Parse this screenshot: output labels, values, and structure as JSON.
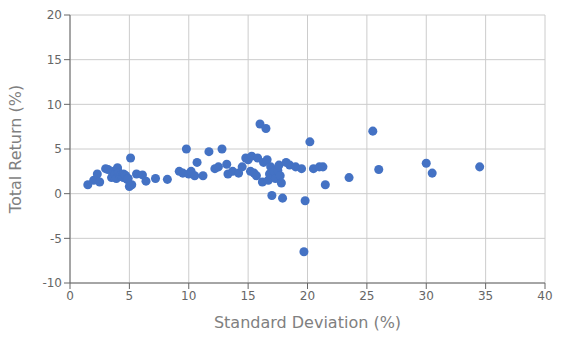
{
  "chart_data": {
    "type": "scatter",
    "xlabel": "Standard Deviation (%)",
    "ylabel": "Total Return (%)",
    "x": [
      1.5,
      2.0,
      2.3,
      2.5,
      3.0,
      3.2,
      3.5,
      3.6,
      3.7,
      3.8,
      3.9,
      4.0,
      4.0,
      4.1,
      4.2,
      4.3,
      4.4,
      4.5,
      4.5,
      4.5,
      4.6,
      4.7,
      4.8,
      4.9,
      5.0,
      5.1,
      5.2,
      5.6,
      6.1,
      6.4,
      7.2,
      8.2,
      9.2,
      9.5,
      9.8,
      10.0,
      10.2,
      10.5,
      10.7,
      11.2,
      11.7,
      12.2,
      12.5,
      12.8,
      13.2,
      13.3,
      13.7,
      14.2,
      14.5,
      14.8,
      15.0,
      15.2,
      15.3,
      15.5,
      15.7,
      15.8,
      16.0,
      16.2,
      16.3,
      16.5,
      16.6,
      16.7,
      16.8,
      16.9,
      17.0,
      17.2,
      17.3,
      17.5,
      17.6,
      17.7,
      17.8,
      17.9,
      18.2,
      18.5,
      19.0,
      19.5,
      19.8,
      20.2,
      20.5,
      21.0,
      21.3,
      21.5,
      19.7,
      23.5,
      25.5,
      26.0,
      30.0,
      30.5,
      34.5
    ],
    "values": [
      1.0,
      1.5,
      2.2,
      1.3,
      2.8,
      2.7,
      1.8,
      2.0,
      2.5,
      2.2,
      1.7,
      2.7,
      2.9,
      2.3,
      2.0,
      2.1,
      1.9,
      2.0,
      2.2,
      1.8,
      2.1,
      2.0,
      1.6,
      1.7,
      0.8,
      4.0,
      1.0,
      2.2,
      2.1,
      1.4,
      1.7,
      1.6,
      2.5,
      2.3,
      5.0,
      2.2,
      2.5,
      2.0,
      3.5,
      2.0,
      4.7,
      2.8,
      3.0,
      5.0,
      3.3,
      2.2,
      2.5,
      2.3,
      3.0,
      4.0,
      3.8,
      2.5,
      4.2,
      2.3,
      2.0,
      4.0,
      7.8,
      1.3,
      3.5,
      7.3,
      3.8,
      1.5,
      2.2,
      3.0,
      -0.2,
      2.5,
      1.7,
      2.6,
      3.2,
      2.0,
      1.2,
      -0.5,
      3.5,
      3.2,
      3.0,
      2.8,
      -0.8,
      5.8,
      2.8,
      3.0,
      3.0,
      1.0,
      -6.5,
      1.8,
      7.0,
      2.7,
      3.4,
      2.3,
      3.0
    ],
    "xlim": [
      0,
      40
    ],
    "ylim": [
      -10,
      20
    ],
    "xticks": [
      0,
      5,
      10,
      15,
      20,
      25,
      30,
      35,
      40
    ],
    "yticks": [
      -10,
      -5,
      0,
      5,
      10,
      15,
      20
    ],
    "color": "#4472C4",
    "grid": true
  }
}
